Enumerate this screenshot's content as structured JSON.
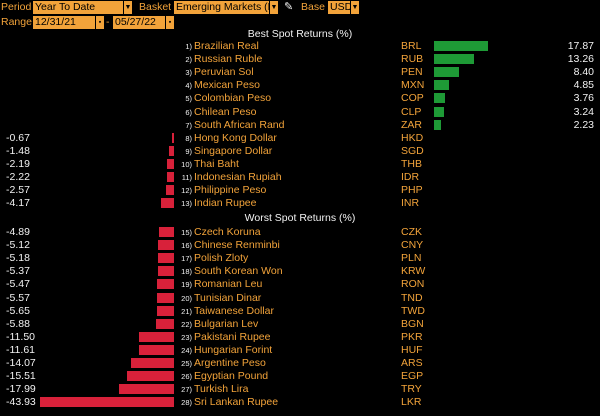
{
  "toolbar": {
    "period_label": "Period",
    "period_value": "Year To Date",
    "basket_label": "Basket",
    "basket_value": "Emerging Markets (E",
    "base_label": "Base",
    "base_value": "USD",
    "range_label": "Range",
    "range_start": "12/31/21",
    "range_sep": "-",
    "range_end": "05/27/22",
    "icons": [
      "chevron-down-icon",
      "pencil-icon",
      "calendar-icon"
    ]
  },
  "best": {
    "title": "Best Spot Returns (%)",
    "rows": [
      {
        "rank": "1)",
        "name": "Brazilian Real",
        "code": "BRL",
        "value": "17.87"
      },
      {
        "rank": "2)",
        "name": "Russian Ruble",
        "code": "RUB",
        "value": "13.26"
      },
      {
        "rank": "3)",
        "name": "Peruvian Sol",
        "code": "PEN",
        "value": "8.40"
      },
      {
        "rank": "4)",
        "name": "Mexican Peso",
        "code": "MXN",
        "value": "4.85"
      },
      {
        "rank": "5)",
        "name": "Colombian Peso",
        "code": "COP",
        "value": "3.76"
      },
      {
        "rank": "6)",
        "name": "Chilean Peso",
        "code": "CLP",
        "value": "3.24"
      },
      {
        "rank": "7)",
        "name": "South African Rand",
        "code": "ZAR",
        "value": "2.23"
      },
      {
        "rank": "8)",
        "name": "Hong Kong Dollar",
        "code": "HKD",
        "value": "-0.67"
      },
      {
        "rank": "9)",
        "name": "Singapore Dollar",
        "code": "SGD",
        "value": "-1.48"
      },
      {
        "rank": "10)",
        "name": "Thai Baht",
        "code": "THB",
        "value": "-2.19"
      },
      {
        "rank": "11)",
        "name": "Indonesian Rupiah",
        "code": "IDR",
        "value": "-2.22"
      },
      {
        "rank": "12)",
        "name": "Philippine Peso",
        "code": "PHP",
        "value": "-2.57"
      },
      {
        "rank": "13)",
        "name": "Indian Rupee",
        "code": "INR",
        "value": "-4.17"
      }
    ]
  },
  "worst": {
    "title": "Worst Spot Returns (%)",
    "rows": [
      {
        "rank": "15)",
        "name": "Czech Koruna",
        "code": "CZK",
        "value": "-4.89"
      },
      {
        "rank": "16)",
        "name": "Chinese Renminbi",
        "code": "CNY",
        "value": "-5.12"
      },
      {
        "rank": "17)",
        "name": "Polish Zloty",
        "code": "PLN",
        "value": "-5.18"
      },
      {
        "rank": "18)",
        "name": "South Korean Won",
        "code": "KRW",
        "value": "-5.37"
      },
      {
        "rank": "19)",
        "name": "Romanian Leu",
        "code": "RON",
        "value": "-5.47"
      },
      {
        "rank": "20)",
        "name": "Tunisian Dinar",
        "code": "TND",
        "value": "-5.57"
      },
      {
        "rank": "21)",
        "name": "Taiwanese Dollar",
        "code": "TWD",
        "value": "-5.65"
      },
      {
        "rank": "22)",
        "name": "Bulgarian Lev",
        "code": "BGN",
        "value": "-5.88"
      },
      {
        "rank": "23)",
        "name": "Pakistani Rupee",
        "code": "PKR",
        "value": "-11.50"
      },
      {
        "rank": "24)",
        "name": "Hungarian Forint",
        "code": "HUF",
        "value": "-11.61"
      },
      {
        "rank": "25)",
        "name": "Argentine Peso",
        "code": "ARS",
        "value": "-14.07"
      },
      {
        "rank": "26)",
        "name": "Egyptian Pound",
        "code": "EGP",
        "value": "-15.51"
      },
      {
        "rank": "27)",
        "name": "Turkish Lira",
        "code": "TRY",
        "value": "-17.99"
      },
      {
        "rank": "28)",
        "name": "Sri Lankan Rupee",
        "code": "LKR",
        "value": "-43.93"
      }
    ]
  },
  "colors": {
    "accent": "#f2a33a",
    "positive": "#1e9a36",
    "negative": "#d8213a",
    "background": "#000000",
    "text_white": "#f2f2f2"
  }
}
